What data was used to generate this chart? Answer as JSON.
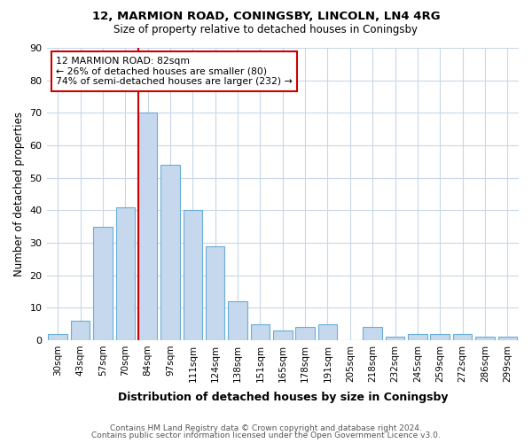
{
  "title1": "12, MARMION ROAD, CONINGSBY, LINCOLN, LN4 4RG",
  "title2": "Size of property relative to detached houses in Coningsby",
  "xlabel": "Distribution of detached houses by size in Coningsby",
  "ylabel": "Number of detached properties",
  "categories": [
    "30sqm",
    "43sqm",
    "57sqm",
    "70sqm",
    "84sqm",
    "97sqm",
    "111sqm",
    "124sqm",
    "138sqm",
    "151sqm",
    "165sqm",
    "178sqm",
    "191sqm",
    "205sqm",
    "218sqm",
    "232sqm",
    "245sqm",
    "259sqm",
    "272sqm",
    "286sqm",
    "299sqm"
  ],
  "values": [
    2,
    6,
    35,
    41,
    70,
    54,
    40,
    29,
    12,
    5,
    3,
    4,
    5,
    0,
    4,
    1,
    2,
    2,
    2,
    1,
    1
  ],
  "bar_color": "#c5d8ed",
  "bar_edge_color": "#6aaed6",
  "property_line_index": 4,
  "property_line_color": "#cc0000",
  "annotation_text": "12 MARMION ROAD: 82sqm\n← 26% of detached houses are smaller (80)\n74% of semi-detached houses are larger (232) →",
  "annotation_box_color": "#ffffff",
  "annotation_box_edge": "#cc0000",
  "ylim": [
    0,
    90
  ],
  "yticks": [
    0,
    10,
    20,
    30,
    40,
    50,
    60,
    70,
    80,
    90
  ],
  "footer_line1": "Contains HM Land Registry data © Crown copyright and database right 2024.",
  "footer_line2": "Contains public sector information licensed under the Open Government Licence v3.0.",
  "bg_color": "#ffffff",
  "grid_color": "#c8d8e8"
}
